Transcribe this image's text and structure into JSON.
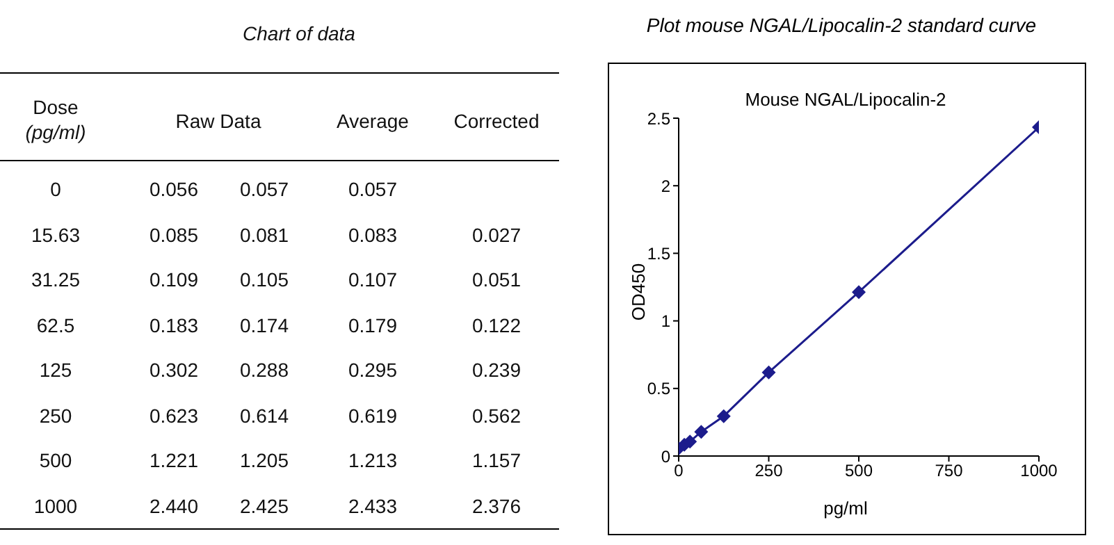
{
  "chart_data": [
    {
      "type": "other",
      "title": "Chart of data",
      "categories": [
        "Dose (pg/ml)",
        "Raw Data",
        "Average",
        "Corrected"
      ],
      "annotations": [
        "0",
        "0.056",
        "0.057",
        "0.057",
        null,
        "15.63",
        "0.085",
        "0.081",
        "0.083",
        "0.027",
        "31.25",
        "0.109",
        "0.105",
        "0.107",
        "0.051",
        "62.5",
        "0.183",
        "0.174",
        "0.179",
        "0.122",
        "125",
        "0.302",
        "0.288",
        "0.295",
        "0.239",
        "250",
        "0.623",
        "0.614",
        "0.619",
        "0.562",
        "500",
        "1.221",
        "1.205",
        "1.213",
        "1.157",
        "1000",
        "2.440",
        "2.425",
        "2.433",
        "2.376"
      ]
    },
    {
      "type": "line",
      "title": "Plot mouse NGAL/Lipocalin-2 standard curve",
      "subtitle": "Mouse NGAL/Lipocalin-2",
      "xlabel": "pg/ml",
      "ylabel": "OD450",
      "x": [
        0,
        15.63,
        31.25,
        62.5,
        125,
        250,
        500,
        1000
      ],
      "series": [
        {
          "color": "#1c1c8c",
          "values": [
            0.057,
            0.083,
            0.107,
            0.179,
            0.295,
            0.619,
            1.213,
            2.433
          ]
        }
      ],
      "xlim": [
        0,
        1000
      ],
      "xticks": [
        0,
        250,
        500,
        750,
        1000
      ],
      "ylim": [
        0,
        2.5
      ],
      "yticks": [
        0,
        0.5,
        1,
        1.5,
        2,
        2.5
      ],
      "marker": "diamond",
      "line_style": "solid",
      "grid": false,
      "legend": false
    }
  ]
}
